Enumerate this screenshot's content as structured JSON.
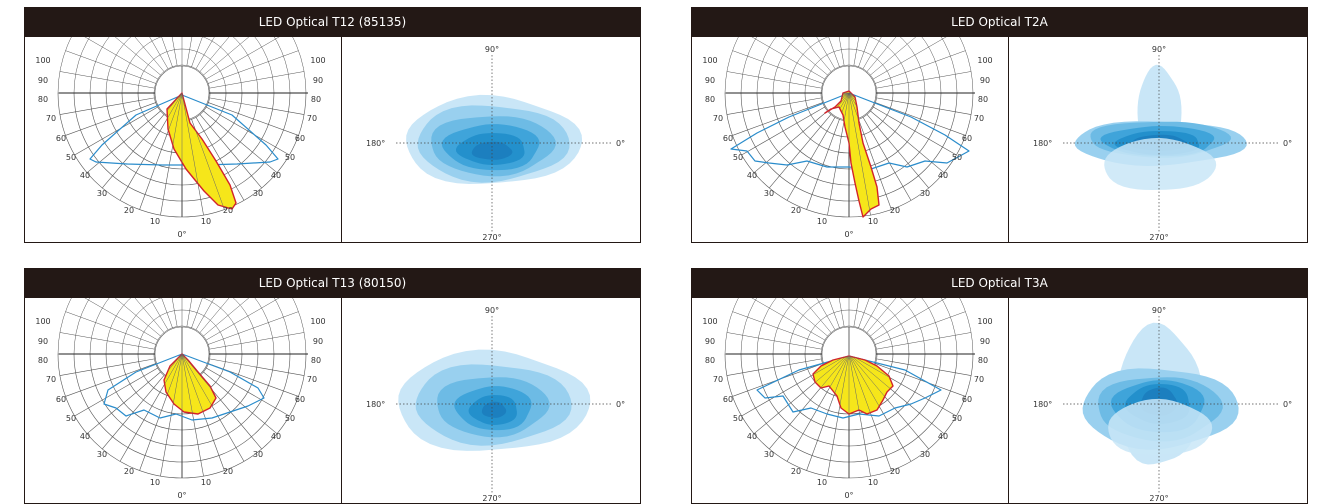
{
  "panels": [
    {
      "title": "LED Optical T12 (85135)",
      "type": "narrow"
    },
    {
      "title": "LED Optical T2A",
      "type": "t2a"
    },
    {
      "title": "LED Optical T13 (80150)",
      "type": "medium"
    },
    {
      "title": "LED Optical T3A",
      "type": "t3a"
    }
  ],
  "polar_labels": {
    "left": [
      "100",
      "90",
      "80",
      "70",
      "60",
      "50",
      "40",
      "30",
      "20",
      "10"
    ],
    "right": [
      "100",
      "90",
      "80",
      "70",
      "60",
      "50",
      "40",
      "30",
      "20",
      "10"
    ],
    "zero": "0°"
  },
  "iso_labels": {
    "top": "90°",
    "bottom": "270°",
    "left": "180°",
    "right": "0°"
  },
  "colors": {
    "header_bg": "#231815",
    "beam_fill": "#f6e61a",
    "beam_stroke": "#d2232a",
    "distribution_line": "#2a8ccb",
    "iso_levels": [
      "#c9e6f7",
      "#99d0ef",
      "#6dbbe5",
      "#3fa4da",
      "#2390cc",
      "#1c7fbf"
    ]
  }
}
